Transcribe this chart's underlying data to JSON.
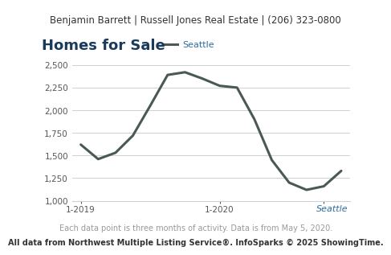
{
  "header_text": "Benjamin Barrett | Russell Jones Real Estate | (206) 323-0800",
  "title": "Homes for Sale",
  "subtitle_right": "Seattle",
  "footnote1": "Each data point is three months of activity. Data is from May 5, 2020.",
  "footnote2": "All data from Northwest Multiple Listing Service®. InfoSparks © 2025 ShowingTime.",
  "legend_label": "Seattle",
  "line_color": "#4a5a52",
  "legend_line_color": "#4a5a52",
  "legend_label_color": "#2e6da4",
  "subtitle_color": "#2e6da4",
  "title_color": "#1a3a5c",
  "x_values": [
    0,
    1,
    2,
    3,
    4,
    5,
    6,
    7,
    8,
    9,
    10,
    11,
    12,
    13,
    14,
    15
  ],
  "y_values": [
    1620,
    1460,
    1530,
    1720,
    2050,
    2390,
    2420,
    2350,
    2270,
    2250,
    1900,
    1450,
    1200,
    1120,
    1160,
    1330
  ],
  "x_tick_positions": [
    0,
    8,
    14
  ],
  "x_tick_labels": [
    "1-2019",
    "1-2020",
    ""
  ],
  "ylim": [
    1000,
    2600
  ],
  "y_ticks": [
    1000,
    1250,
    1500,
    1750,
    2000,
    2250,
    2500
  ],
  "grid_color": "#d0d0d0",
  "bg_color": "#ffffff",
  "header_bg_color": "#e8e8e8",
  "line_width": 2.2,
  "header_fontsize": 8.5,
  "title_fontsize": 13,
  "tick_fontsize": 7.5,
  "footnote1_fontsize": 7,
  "footnote2_fontsize": 7
}
